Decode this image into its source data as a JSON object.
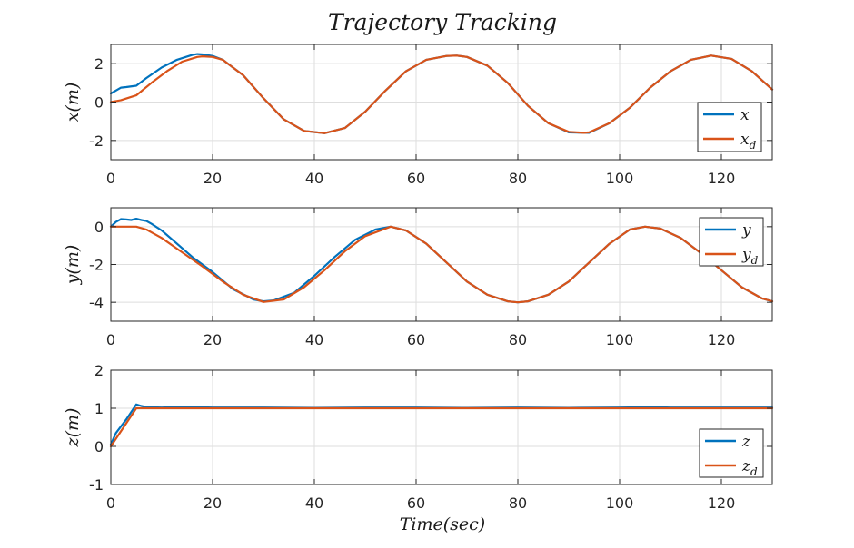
{
  "figure": {
    "title": "Trajectory Tracking",
    "xlabel": "Time(sec)",
    "colors": {
      "actual": "#0072BD",
      "desired": "#D95319"
    }
  },
  "chart_data": [
    {
      "type": "line",
      "ylabel": "x(m)",
      "xlim": [
        0,
        130
      ],
      "ylim": [
        -3,
        3
      ],
      "xticks": [
        0,
        20,
        40,
        60,
        80,
        100,
        120
      ],
      "yticks": [
        2,
        0,
        -2
      ],
      "ytick_labels": [
        "2",
        "0",
        "-2"
      ],
      "grid": true,
      "legend_position": "bottom-right",
      "series": [
        {
          "name": "x",
          "x": [
            0,
            1,
            2,
            3,
            5,
            7,
            10,
            13,
            16,
            17,
            18,
            20,
            22,
            26,
            30,
            34,
            38,
            42,
            46,
            50,
            54,
            58,
            62,
            66,
            68,
            70,
            74,
            78,
            82,
            86,
            90,
            94,
            98,
            102,
            106,
            110,
            114,
            118,
            122,
            126,
            130
          ],
          "y": [
            0.45,
            0.6,
            0.75,
            0.78,
            0.85,
            1.25,
            1.8,
            2.2,
            2.45,
            2.5,
            2.48,
            2.4,
            2.2,
            1.4,
            0.2,
            -0.9,
            -1.5,
            -1.62,
            -1.35,
            -0.5,
            0.6,
            1.6,
            2.2,
            2.4,
            2.42,
            2.35,
            1.9,
            1.0,
            -0.2,
            -1.1,
            -1.58,
            -1.6,
            -1.1,
            -0.3,
            0.75,
            1.6,
            2.2,
            2.42,
            2.25,
            1.6,
            0.65
          ]
        },
        {
          "name": "x_d",
          "x": [
            0,
            2,
            5,
            8,
            11,
            14,
            17,
            18,
            20,
            22,
            26,
            30,
            34,
            38,
            42,
            46,
            50,
            54,
            58,
            62,
            66,
            68,
            70,
            74,
            78,
            82,
            86,
            90,
            93,
            94,
            98,
            102,
            106,
            110,
            114,
            118,
            122,
            126,
            130
          ],
          "y": [
            0,
            0.1,
            0.35,
            1.0,
            1.6,
            2.1,
            2.35,
            2.38,
            2.35,
            2.2,
            1.4,
            0.2,
            -0.9,
            -1.5,
            -1.62,
            -1.35,
            -0.5,
            0.6,
            1.6,
            2.2,
            2.4,
            2.42,
            2.35,
            1.9,
            1.0,
            -0.2,
            -1.1,
            -1.55,
            -1.6,
            -1.58,
            -1.1,
            -0.3,
            0.75,
            1.6,
            2.2,
            2.42,
            2.25,
            1.6,
            0.65
          ]
        }
      ]
    },
    {
      "type": "line",
      "ylabel": "y(m)",
      "xlim": [
        0,
        130
      ],
      "ylim": [
        -5,
        1
      ],
      "xticks": [
        0,
        20,
        40,
        60,
        80,
        100,
        120
      ],
      "yticks": [
        0,
        -2,
        -4
      ],
      "ytick_labels": [
        "0",
        "-2",
        "-4"
      ],
      "grid": true,
      "legend_position": "top-right",
      "series": [
        {
          "name": "y",
          "x": [
            0,
            1,
            2,
            3,
            4,
            5,
            6,
            7,
            8,
            10,
            13,
            16,
            20,
            24,
            28,
            30,
            32,
            36,
            40,
            44,
            48,
            52,
            55,
            58,
            62,
            66,
            70,
            74,
            78,
            80,
            82,
            86,
            90,
            94,
            98,
            102,
            105,
            108,
            112,
            116,
            120,
            124,
            128,
            130
          ],
          "y": [
            0,
            0.25,
            0.4,
            0.38,
            0.35,
            0.42,
            0.35,
            0.3,
            0.15,
            -0.2,
            -0.9,
            -1.6,
            -2.4,
            -3.3,
            -3.85,
            -3.95,
            -3.9,
            -3.5,
            -2.6,
            -1.6,
            -0.7,
            -0.15,
            0,
            -0.2,
            -0.9,
            -1.9,
            -2.9,
            -3.6,
            -3.95,
            -4.0,
            -3.95,
            -3.6,
            -2.9,
            -1.9,
            -0.9,
            -0.15,
            0,
            -0.1,
            -0.6,
            -1.4,
            -2.3,
            -3.2,
            -3.8,
            -3.95
          ]
        },
        {
          "name": "y_d",
          "x": [
            0,
            2,
            5,
            7,
            10,
            14,
            18,
            22,
            26,
            30,
            34,
            38,
            42,
            46,
            50,
            55,
            58,
            62,
            66,
            70,
            74,
            78,
            80,
            82,
            86,
            90,
            94,
            98,
            102,
            105,
            108,
            112,
            116,
            120,
            124,
            128,
            130
          ],
          "y": [
            0,
            0,
            0,
            -0.15,
            -0.6,
            -1.35,
            -2.1,
            -2.9,
            -3.6,
            -3.98,
            -3.85,
            -3.2,
            -2.3,
            -1.3,
            -0.5,
            0,
            -0.2,
            -0.9,
            -1.9,
            -2.9,
            -3.6,
            -3.95,
            -4.0,
            -3.95,
            -3.6,
            -2.9,
            -1.9,
            -0.9,
            -0.15,
            0,
            -0.1,
            -0.6,
            -1.4,
            -2.3,
            -3.2,
            -3.8,
            -3.95
          ]
        }
      ]
    },
    {
      "type": "line",
      "ylabel": "z(m)",
      "xlim": [
        0,
        130
      ],
      "ylim": [
        -1,
        2
      ],
      "xticks": [
        0,
        20,
        40,
        60,
        80,
        100,
        120
      ],
      "yticks": [
        2,
        1,
        0,
        -1
      ],
      "ytick_labels": [
        "2",
        "1",
        "0",
        "-1"
      ],
      "grid": true,
      "legend_position": "bottom-right",
      "series": [
        {
          "name": "z",
          "x": [
            0,
            1,
            3,
            5,
            6,
            7,
            10,
            14,
            20,
            30,
            40,
            50,
            60,
            70,
            80,
            90,
            100,
            107,
            110,
            120,
            130
          ],
          "y": [
            0.05,
            0.35,
            0.7,
            1.1,
            1.06,
            1.03,
            1.02,
            1.04,
            1.02,
            1.02,
            1.01,
            1.02,
            1.02,
            1.01,
            1.02,
            1.01,
            1.02,
            1.03,
            1.02,
            1.02,
            1.02
          ]
        },
        {
          "name": "z_d",
          "x": [
            0,
            5,
            10,
            20,
            30,
            40,
            50,
            60,
            70,
            80,
            90,
            100,
            110,
            120,
            130
          ],
          "y": [
            0,
            1.0,
            1.0,
            1.0,
            1.0,
            1.0,
            1.0,
            1.0,
            1.0,
            1.0,
            1.0,
            1.0,
            1.0,
            1.0,
            1.0
          ]
        }
      ]
    }
  ],
  "legend_labels": [
    [
      {
        "base": "x",
        "sub": ""
      },
      {
        "base": "x",
        "sub": "d"
      }
    ],
    [
      {
        "base": "y",
        "sub": ""
      },
      {
        "base": "y",
        "sub": "d"
      }
    ],
    [
      {
        "base": "z",
        "sub": ""
      },
      {
        "base": "z",
        "sub": "d"
      }
    ]
  ]
}
